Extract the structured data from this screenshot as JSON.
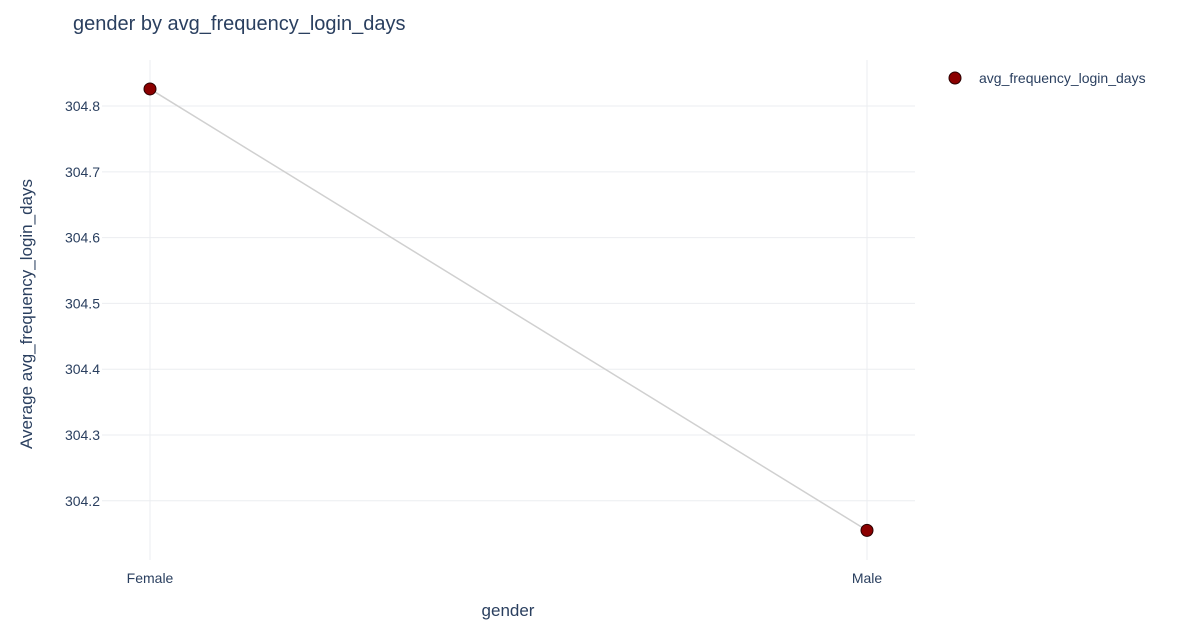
{
  "chart_data": {
    "type": "line",
    "title": "gender by avg_frequency_login_days",
    "xlabel": "gender",
    "ylabel": "Average avg_frequency_login_days",
    "categories": [
      "Female",
      "Male"
    ],
    "series": [
      {
        "name": "avg_frequency_login_days",
        "values": [
          304.826,
          304.155
        ]
      }
    ],
    "yticks": [
      "304.2",
      "304.3",
      "304.4",
      "304.5",
      "304.6",
      "304.7",
      "304.8"
    ],
    "ylim": [
      304.11,
      304.87
    ],
    "grid": true,
    "legend": "top-right",
    "colors": {
      "marker_fill": "#8b0000",
      "marker_stroke": "#2a0000",
      "line": "#d0d0d0",
      "grid": "#ebedf0",
      "text": "#2a3f5f"
    }
  }
}
